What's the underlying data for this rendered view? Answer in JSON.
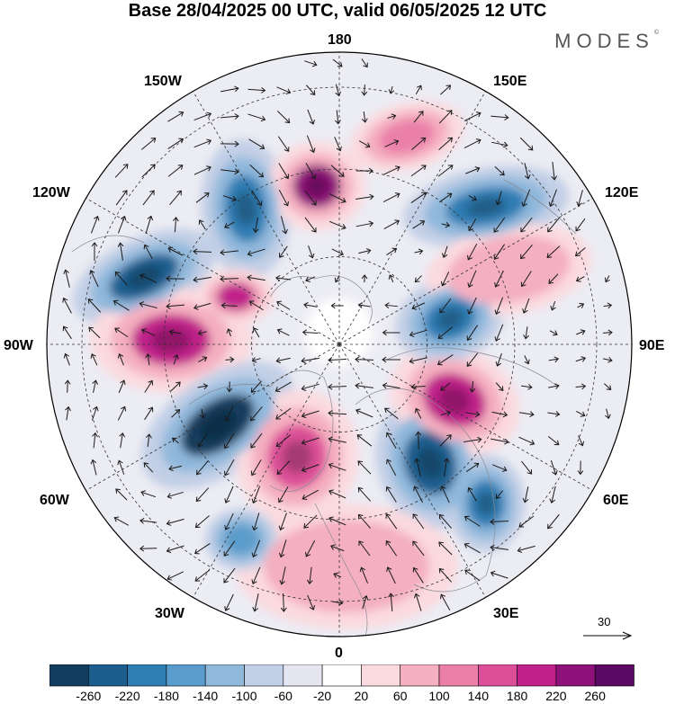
{
  "header": {
    "title": "Base 28/04/2025 00 UTC, valid 06/05/2025 12 UTC",
    "brand": "MODES",
    "brand_mark": "©"
  },
  "longitude_labels": {
    "n180": "180",
    "w150": "150W",
    "e150": "150E",
    "w120": "120W",
    "e120": "120E",
    "w90": "90W",
    "e90": "90E",
    "w60": "60W",
    "e60": "60E",
    "w30": "30W",
    "e30": "30E",
    "s0": "0"
  },
  "reference_vector": {
    "label": "30"
  },
  "colorbar": {
    "tick_labels": [
      "-260",
      "-220",
      "-180",
      "-140",
      "-100",
      "-60",
      "-20",
      "20",
      "60",
      "100",
      "140",
      "180",
      "220",
      "260"
    ],
    "colors": [
      "#133d5e",
      "#1c5f8f",
      "#2f7db3",
      "#5a9ccb",
      "#90b8db",
      "#c2cfe6",
      "#e6e6f2",
      "#ffffff",
      "#fbdadf",
      "#f4afc0",
      "#ea80a8",
      "#dc4f98",
      "#c0218a",
      "#8e127a",
      "#5a0a63"
    ]
  },
  "map": {
    "projection": "north-polar-stereographic",
    "field": "anomaly-shading-with-wind-vectors",
    "anomalies": [
      {
        "name": "blue-120w-pacific",
        "color": "#1c5f8f",
        "strength": 3
      },
      {
        "name": "blue-150w",
        "color": "#2f7db3",
        "strength": 3
      },
      {
        "name": "pink-180",
        "color": "#8e127a",
        "strength": 3
      },
      {
        "name": "pink-165e",
        "color": "#ea80a8",
        "strength": 2
      },
      {
        "name": "blue-130e",
        "color": "#2f7db3",
        "strength": 3
      },
      {
        "name": "pink-100w",
        "color": "#c0218a",
        "strength": 3
      },
      {
        "name": "pink-110w-small",
        "color": "#c0218a",
        "strength": 2
      },
      {
        "name": "blue-60w-atlantic",
        "color": "#133d5e",
        "strength": 4
      },
      {
        "name": "pink-20w",
        "color": "#dc4f98",
        "strength": 3
      },
      {
        "name": "blue-30e",
        "color": "#1c5f8f",
        "strength": 3
      },
      {
        "name": "blue-50e",
        "color": "#2f7db3",
        "strength": 3
      },
      {
        "name": "pink-70e",
        "color": "#c0218a",
        "strength": 3
      },
      {
        "name": "blue-90e",
        "color": "#2f7db3",
        "strength": 3
      },
      {
        "name": "pink-0-south",
        "color": "#f4afc0",
        "strength": 2
      },
      {
        "name": "blue-40w-small",
        "color": "#5a9ccb",
        "strength": 2
      },
      {
        "name": "pink-105e",
        "color": "#f4afc0",
        "strength": 2
      }
    ]
  }
}
